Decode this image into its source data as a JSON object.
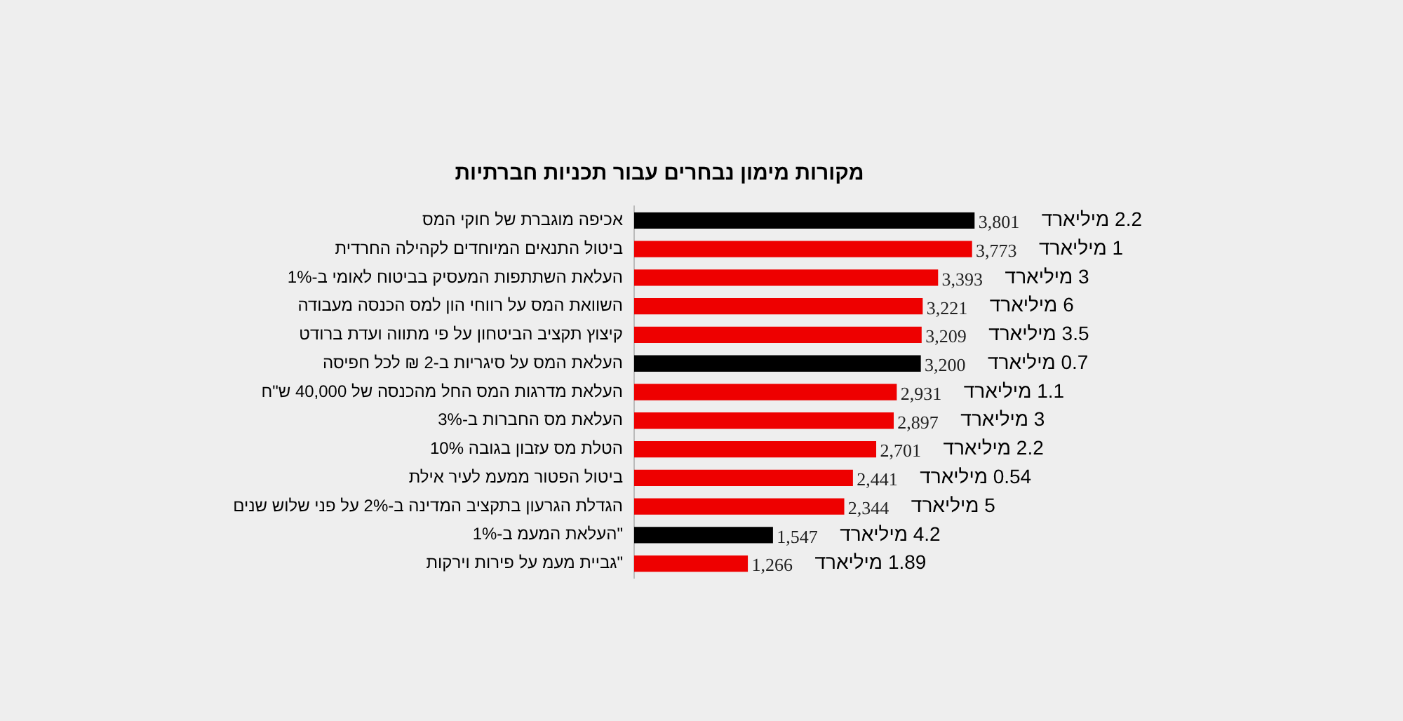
{
  "chart_data": {
    "type": "bar",
    "orientation": "horizontal",
    "title": "מקורות מימון נבחרים עבור תכניות חברתיות",
    "categories": [
      "אכיפה מוגברת של חוקי המס",
      "ביטול התנאים המיוחדים לקהילה החרדית",
      "העלאת השתתפות המעסיק בביטוח לאומי ב-1%",
      "השוואת המס על רווחי הון למס הכנסה מעבודה",
      "קיצוץ תקציב הביטחון על פי מתווה ועדת ברודט",
      "העלאת המס על סיגריות ב-2 ₪ לכל חפיסה",
      "העלאת מדרגות המס החל מהכנסה של 40,000 ש\"ח",
      "העלאת מס החברות ב-3%",
      "הטלת מס עזבון בגובה 10%",
      "ביטול הפטור ממעמ לעיר אילת",
      "הגדלת הגרעון בתקציב המדינה ב-2% על פני שלוש שנים",
      "העלאת המעמ ב-1%\"",
      "גביית מעמ על פירות וירקות\""
    ],
    "values": [
      3801,
      3773,
      3393,
      3221,
      3209,
      3200,
      2931,
      2897,
      2701,
      2441,
      2344,
      1547,
      1266
    ],
    "value_labels": [
      "3,801",
      "3,773",
      "3,393",
      "3,221",
      "3,209",
      "3,200",
      "2,931",
      "2,897",
      "2,701",
      "2,441",
      "2,344",
      "1,547",
      "1,266"
    ],
    "colors": [
      "#000000",
      "#ee0000",
      "#ee0000",
      "#ee0000",
      "#ee0000",
      "#000000",
      "#ee0000",
      "#ee0000",
      "#ee0000",
      "#ee0000",
      "#ee0000",
      "#000000",
      "#ee0000"
    ],
    "tick_labels": "y",
    "grid": false,
    "legend": false,
    "annotations": [
      "2.2 מיליארד",
      "1 מיליארד",
      "3 מיליארד",
      "6 מיליארד",
      "3.5 מיליארד",
      "0.7 מיליארד",
      "1.1 מיליארד",
      "3 מיליארד",
      "2.2 מיליארד",
      "0.54 מיליארד",
      "5 מיליארד",
      "4.2 מיליארד",
      "1.89 מיליארד"
    ]
  }
}
